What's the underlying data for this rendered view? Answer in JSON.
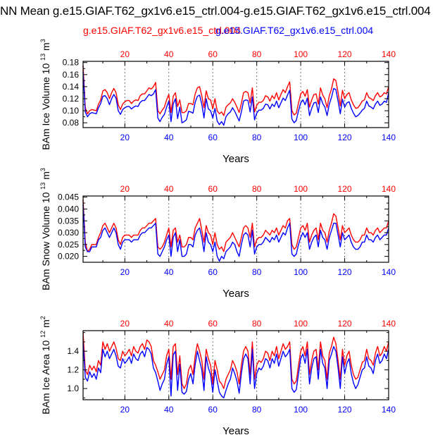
{
  "figure": {
    "title": "NN Mean g.e15.GIAF.T62_gx1v6.e15_ctrl.004-g.e15.GIAF.T62_gx1v6.e15_ctrl.004",
    "subtitle_left": "g.e15.GIAF.T62_gx1v6.e15_ctrl.004",
    "subtitle_right": "g.e15.GIAF.T62_gx1v6.e15_ctrl.004",
    "colors": {
      "case1": "#ff0000",
      "case2": "#0000ff",
      "axis": "#000000",
      "grid": "#666666"
    }
  },
  "chart_data": [
    {
      "type": "line",
      "title": "",
      "ylabel": "BAm Ice Volume 10",
      "ylabel_exp": "13",
      "ylabel_unit": "m",
      "ylabel_unit_exp": "3",
      "xlabel": "Years",
      "xlim": [
        1,
        140
      ],
      "ylim": [
        0.072,
        0.182
      ],
      "yticks": [
        0.08,
        0.09,
        0.1,
        0.11,
        0.12,
        0.13,
        0.14,
        0.15,
        0.16,
        0.17,
        0.18
      ],
      "ytick_labels": [
        "0.08",
        "0.10",
        "0.12",
        "0.14",
        "0.16",
        "0.18"
      ],
      "xticks_bottom": [
        "20",
        "40",
        "60",
        "80",
        "100",
        "120",
        "140"
      ],
      "xticks_top": [
        "20",
        "40",
        "60",
        "80",
        "100",
        "120",
        "140"
      ],
      "gridlines_x": [
        20,
        40,
        60,
        80,
        100,
        120
      ],
      "series": [
        {
          "name": "g.e15.GIAF.T62_gx1v6.e15_ctrl.004",
          "color": "#ff0000",
          "values": [
            0.175,
            0.105,
            0.095,
            0.1,
            0.102,
            0.101,
            0.1,
            0.111,
            0.118,
            0.133,
            0.135,
            0.13,
            0.12,
            0.13,
            0.137,
            0.13,
            0.11,
            0.102,
            0.111,
            0.115,
            0.117,
            0.117,
            0.112,
            0.116,
            0.118,
            0.117,
            0.125,
            0.128,
            0.128,
            0.133,
            0.138,
            0.136,
            0.14,
            0.147,
            0.1,
            0.095,
            0.101,
            0.106,
            0.118,
            0.127,
            0.097,
            0.124,
            0.13,
            0.107,
            0.118,
            0.097,
            0.097,
            0.1,
            0.112,
            0.112,
            0.11,
            0.128,
            0.138,
            0.14,
            0.125,
            0.105,
            0.133,
            0.12,
            0.118,
            0.103,
            0.12,
            0.1,
            0.095,
            0.098,
            0.092,
            0.106,
            0.11,
            0.113,
            0.12,
            0.114,
            0.106,
            0.097,
            0.112,
            0.13,
            0.132,
            0.13,
            0.113,
            0.138,
            0.098,
            0.109,
            0.114,
            0.114,
            0.117,
            0.125,
            0.123,
            0.116,
            0.125,
            0.12,
            0.13,
            0.118,
            0.127,
            0.135,
            0.13,
            0.14,
            0.148,
            0.1,
            0.093,
            0.096,
            0.113,
            0.128,
            0.132,
            0.124,
            0.135,
            0.106,
            0.118,
            0.127,
            0.128,
            0.111,
            0.138,
            0.126,
            0.12,
            0.105,
            0.125,
            0.136,
            0.153,
            0.15,
            0.13,
            0.108,
            0.134,
            0.12,
            0.127,
            0.13,
            0.118,
            0.11,
            0.104,
            0.105,
            0.11,
            0.116,
            0.118,
            0.13,
            0.122,
            0.12,
            0.117,
            0.125,
            0.13,
            0.123,
            0.125,
            0.13,
            0.128,
            0.14
          ]
        },
        {
          "name": "g.e15.GIAF.T62_gx1v6.e15_ctrl.004",
          "color": "#0000ff",
          "values": [
            0.165,
            0.098,
            0.09,
            0.095,
            0.097,
            0.096,
            0.095,
            0.105,
            0.112,
            0.124,
            0.125,
            0.12,
            0.11,
            0.12,
            0.127,
            0.121,
            0.1,
            0.094,
            0.102,
            0.105,
            0.107,
            0.107,
            0.103,
            0.106,
            0.108,
            0.107,
            0.114,
            0.117,
            0.117,
            0.122,
            0.127,
            0.125,
            0.128,
            0.135,
            0.088,
            0.082,
            0.089,
            0.094,
            0.106,
            0.116,
            0.082,
            0.111,
            0.12,
            0.087,
            0.106,
            0.08,
            0.082,
            0.085,
            0.099,
            0.098,
            0.096,
            0.114,
            0.124,
            0.126,
            0.111,
            0.088,
            0.12,
            0.103,
            0.1,
            0.088,
            0.104,
            0.083,
            0.077,
            0.082,
            0.076,
            0.09,
            0.095,
            0.098,
            0.105,
            0.099,
            0.091,
            0.083,
            0.098,
            0.116,
            0.118,
            0.117,
            0.098,
            0.123,
            0.085,
            0.096,
            0.101,
            0.101,
            0.104,
            0.111,
            0.11,
            0.103,
            0.111,
            0.107,
            0.116,
            0.105,
            0.113,
            0.121,
            0.117,
            0.126,
            0.134,
            0.086,
            0.08,
            0.084,
            0.1,
            0.113,
            0.118,
            0.11,
            0.121,
            0.092,
            0.104,
            0.113,
            0.114,
            0.097,
            0.123,
            0.112,
            0.106,
            0.092,
            0.111,
            0.122,
            0.137,
            0.135,
            0.116,
            0.095,
            0.119,
            0.106,
            0.113,
            0.115,
            0.104,
            0.096,
            0.09,
            0.092,
            0.096,
            0.101,
            0.104,
            0.116,
            0.108,
            0.106,
            0.103,
            0.111,
            0.116,
            0.109,
            0.111,
            0.116,
            0.114,
            0.13
          ]
        }
      ]
    },
    {
      "type": "line",
      "title": "",
      "ylabel": "BAm Snow Volume 10",
      "ylabel_exp": "13",
      "ylabel_unit": "m",
      "ylabel_unit_exp": "3",
      "xlabel": "Years",
      "xlim": [
        1,
        140
      ],
      "ylim": [
        0.0175,
        0.0455
      ],
      "yticks": [
        0.02,
        0.0225,
        0.025,
        0.0275,
        0.03,
        0.0325,
        0.035,
        0.0375,
        0.04,
        0.0425,
        0.045
      ],
      "ytick_labels": [
        "0.020",
        "0.025",
        "0.030",
        "0.035",
        "0.040",
        "0.045"
      ],
      "xticks_bottom": [
        "20",
        "40",
        "60",
        "80",
        "100",
        "120",
        "140"
      ],
      "xticks_top": [
        "20",
        "40",
        "60",
        "80",
        "100",
        "120",
        "140"
      ],
      "gridlines_x": [
        20,
        40,
        60,
        80,
        100,
        120
      ],
      "series": [
        {
          "name": "g.e15.GIAF.T62_gx1v6.e15_ctrl.004",
          "color": "#ff0000",
          "values": [
            0.044,
            0.026,
            0.022,
            0.023,
            0.025,
            0.025,
            0.025,
            0.028,
            0.03,
            0.033,
            0.034,
            0.032,
            0.03,
            0.032,
            0.034,
            0.032,
            0.027,
            0.025,
            0.028,
            0.029,
            0.029,
            0.029,
            0.028,
            0.029,
            0.029,
            0.029,
            0.031,
            0.032,
            0.032,
            0.033,
            0.034,
            0.034,
            0.035,
            0.036,
            0.024,
            0.023,
            0.024,
            0.026,
            0.029,
            0.032,
            0.024,
            0.031,
            0.032,
            0.026,
            0.029,
            0.024,
            0.024,
            0.025,
            0.028,
            0.028,
            0.027,
            0.032,
            0.034,
            0.036,
            0.031,
            0.026,
            0.033,
            0.03,
            0.029,
            0.025,
            0.03,
            0.025,
            0.023,
            0.024,
            0.022,
            0.026,
            0.027,
            0.028,
            0.03,
            0.028,
            0.026,
            0.024,
            0.028,
            0.032,
            0.033,
            0.032,
            0.028,
            0.034,
            0.024,
            0.027,
            0.028,
            0.028,
            0.029,
            0.031,
            0.03,
            0.029,
            0.031,
            0.03,
            0.032,
            0.029,
            0.031,
            0.033,
            0.032,
            0.035,
            0.036,
            0.025,
            0.023,
            0.024,
            0.028,
            0.032,
            0.033,
            0.031,
            0.034,
            0.026,
            0.029,
            0.031,
            0.032,
            0.027,
            0.034,
            0.031,
            0.03,
            0.026,
            0.031,
            0.034,
            0.038,
            0.037,
            0.032,
            0.027,
            0.033,
            0.03,
            0.031,
            0.032,
            0.029,
            0.027,
            0.026,
            0.026,
            0.027,
            0.029,
            0.029,
            0.032,
            0.03,
            0.03,
            0.029,
            0.031,
            0.032,
            0.03,
            0.031,
            0.032,
            0.032,
            0.035
          ]
        },
        {
          "name": "g.e15.GIAF.T62_gx1v6.e15_ctrl.004",
          "color": "#0000ff",
          "values": [
            0.042,
            0.024,
            0.022,
            0.022,
            0.024,
            0.024,
            0.024,
            0.027,
            0.028,
            0.031,
            0.032,
            0.03,
            0.028,
            0.03,
            0.032,
            0.03,
            0.025,
            0.023,
            0.026,
            0.027,
            0.027,
            0.027,
            0.026,
            0.027,
            0.027,
            0.027,
            0.029,
            0.03,
            0.03,
            0.031,
            0.032,
            0.032,
            0.033,
            0.034,
            0.021,
            0.02,
            0.022,
            0.024,
            0.027,
            0.029,
            0.02,
            0.028,
            0.03,
            0.022,
            0.027,
            0.02,
            0.02,
            0.021,
            0.025,
            0.025,
            0.024,
            0.029,
            0.031,
            0.032,
            0.028,
            0.022,
            0.03,
            0.026,
            0.025,
            0.022,
            0.026,
            0.02,
            0.018,
            0.02,
            0.019,
            0.022,
            0.023,
            0.024,
            0.026,
            0.025,
            0.022,
            0.02,
            0.025,
            0.029,
            0.03,
            0.029,
            0.024,
            0.031,
            0.021,
            0.024,
            0.025,
            0.025,
            0.026,
            0.028,
            0.027,
            0.026,
            0.028,
            0.027,
            0.029,
            0.026,
            0.028,
            0.03,
            0.029,
            0.032,
            0.034,
            0.021,
            0.02,
            0.021,
            0.025,
            0.028,
            0.03,
            0.028,
            0.03,
            0.023,
            0.026,
            0.028,
            0.029,
            0.024,
            0.031,
            0.028,
            0.027,
            0.023,
            0.028,
            0.031,
            0.034,
            0.034,
            0.029,
            0.024,
            0.03,
            0.027,
            0.028,
            0.029,
            0.026,
            0.024,
            0.023,
            0.023,
            0.024,
            0.026,
            0.026,
            0.029,
            0.027,
            0.027,
            0.026,
            0.028,
            0.029,
            0.027,
            0.028,
            0.029,
            0.029,
            0.032
          ]
        }
      ]
    },
    {
      "type": "line",
      "title": "",
      "ylabel": "BAm Ice Area 10",
      "ylabel_exp": "12",
      "ylabel_unit": "m",
      "ylabel_unit_exp": "2",
      "xlabel": "Years",
      "xlim": [
        1,
        140
      ],
      "ylim": [
        0.88,
        1.62
      ],
      "yticks": [
        0.9,
        1.0,
        1.1,
        1.2,
        1.3,
        1.4,
        1.5,
        1.6
      ],
      "ytick_labels": [
        "1.0",
        "1.2",
        "1.4"
      ],
      "xticks_bottom": [
        "20",
        "40",
        "60",
        "80",
        "100",
        "120",
        "140"
      ],
      "xticks_top": [
        "20",
        "40",
        "60",
        "80",
        "100",
        "120",
        "140"
      ],
      "gridlines_x": [
        20,
        40,
        60,
        80,
        100,
        120
      ],
      "series": [
        {
          "name": "g.e15.GIAF.T62_gx1v6.e15_ctrl.004",
          "color": "#ff0000",
          "values": [
            1.6,
            1.2,
            1.15,
            1.25,
            1.2,
            1.24,
            1.18,
            1.3,
            1.25,
            1.5,
            1.42,
            1.48,
            1.4,
            1.45,
            1.5,
            1.43,
            1.32,
            1.3,
            1.4,
            1.35,
            1.38,
            1.42,
            1.35,
            1.45,
            1.4,
            1.38,
            1.45,
            1.48,
            1.42,
            1.52,
            1.5,
            1.45,
            1.3,
            1.25,
            1.18,
            1.1,
            1.15,
            1.2,
            1.35,
            1.42,
            1.1,
            1.45,
            1.48,
            1.15,
            1.35,
            1.05,
            1.0,
            1.05,
            1.2,
            1.25,
            1.15,
            1.35,
            1.48,
            1.4,
            1.3,
            1.1,
            1.42,
            1.32,
            1.25,
            1.05,
            1.3,
            1.2,
            1.08,
            1.05,
            1.0,
            1.1,
            1.15,
            1.2,
            1.3,
            1.25,
            1.18,
            1.05,
            1.25,
            1.4,
            1.45,
            1.4,
            1.15,
            1.5,
            1.1,
            1.25,
            1.3,
            1.28,
            1.32,
            1.4,
            1.38,
            1.3,
            1.4,
            1.35,
            1.45,
            1.32,
            1.4,
            1.48,
            1.42,
            1.45,
            1.5,
            1.1,
            1.05,
            1.08,
            1.25,
            1.4,
            1.45,
            1.35,
            1.5,
            1.15,
            1.3,
            1.4,
            1.42,
            1.2,
            1.5,
            1.35,
            1.3,
            1.1,
            1.38,
            1.45,
            1.55,
            1.48,
            1.3,
            1.1,
            1.42,
            1.25,
            1.35,
            1.4,
            1.25,
            1.15,
            1.1,
            1.12,
            1.2,
            1.28,
            1.3,
            1.42,
            1.32,
            1.3,
            1.25,
            1.38,
            1.45,
            1.35,
            1.38,
            1.45,
            1.4,
            1.5
          ]
        },
        {
          "name": "g.e15.GIAF.T62_gx1v6.e15_ctrl.004",
          "color": "#0000ff",
          "values": [
            1.5,
            1.12,
            1.08,
            1.18,
            1.12,
            1.16,
            1.1,
            1.22,
            1.17,
            1.42,
            1.34,
            1.4,
            1.32,
            1.37,
            1.42,
            1.35,
            1.24,
            1.22,
            1.32,
            1.27,
            1.3,
            1.34,
            1.27,
            1.37,
            1.32,
            1.3,
            1.37,
            1.4,
            1.34,
            1.44,
            1.42,
            1.37,
            1.22,
            1.17,
            1.08,
            0.98,
            1.05,
            1.1,
            1.26,
            1.34,
            0.92,
            1.36,
            1.4,
            0.98,
            1.26,
            0.96,
            0.94,
            0.97,
            1.1,
            1.16,
            1.05,
            1.26,
            1.4,
            1.3,
            1.2,
            0.98,
            1.34,
            1.22,
            1.15,
            0.96,
            1.2,
            1.08,
            0.96,
            0.92,
            0.9,
            0.98,
            1.05,
            1.1,
            1.22,
            1.16,
            1.08,
            0.95,
            1.16,
            1.32,
            1.37,
            1.32,
            1.05,
            1.42,
            1.0,
            1.16,
            1.22,
            1.2,
            1.24,
            1.32,
            1.3,
            1.22,
            1.32,
            1.27,
            1.37,
            1.24,
            1.32,
            1.4,
            1.34,
            1.37,
            1.42,
            1.0,
            0.96,
            0.99,
            1.16,
            1.32,
            1.37,
            1.27,
            1.42,
            1.05,
            1.22,
            1.32,
            1.34,
            1.1,
            1.42,
            1.27,
            1.22,
            1.0,
            1.3,
            1.37,
            1.45,
            1.4,
            1.22,
            1.0,
            1.34,
            1.16,
            1.27,
            1.32,
            1.16,
            1.06,
            1.0,
            1.04,
            1.12,
            1.2,
            1.22,
            1.34,
            1.24,
            1.22,
            1.16,
            1.3,
            1.37,
            1.27,
            1.3,
            1.37,
            1.32,
            1.42
          ]
        }
      ]
    }
  ]
}
